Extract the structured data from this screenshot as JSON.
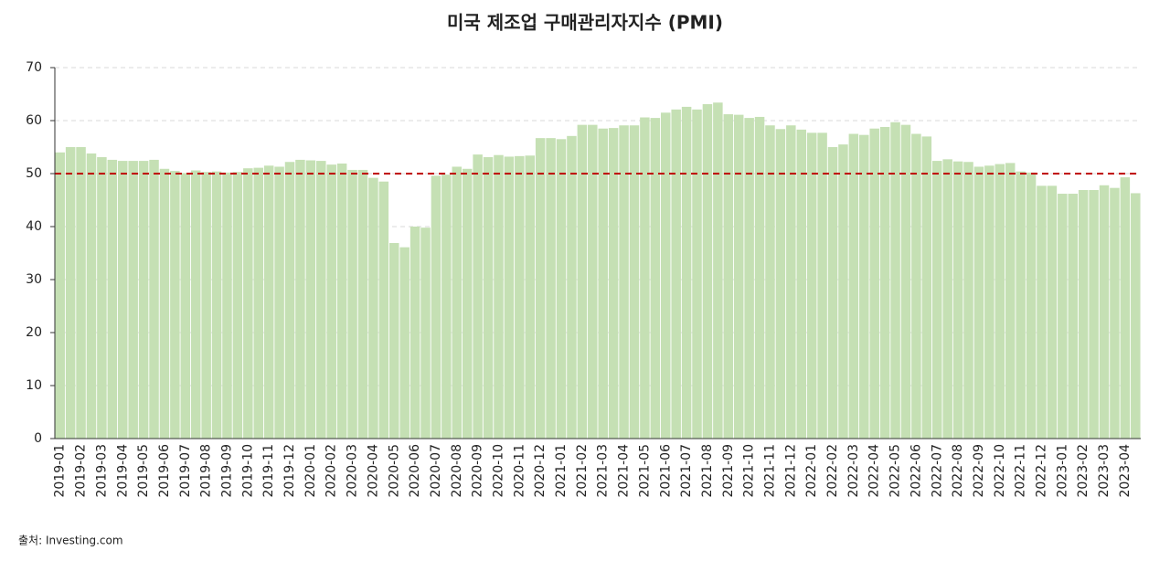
{
  "chart_data": {
    "type": "bar",
    "title": "미국 제조업 구매관리자지수 (PMI)",
    "source": "출처: Investing.com",
    "categories": [
      "2019-01",
      null,
      "2019-02",
      null,
      "2019-03",
      null,
      "2019-04",
      null,
      "2019-05",
      null,
      "2019-06",
      null,
      "2019-07",
      null,
      "2019-08",
      null,
      "2019-09",
      null,
      "2019-10",
      null,
      "2019-11",
      null,
      "2019-12",
      null,
      "2020-01",
      null,
      "2020-02",
      null,
      "2020-03",
      null,
      "2020-04",
      null,
      "2020-05",
      null,
      "2020-06",
      null,
      "2020-07",
      null,
      "2020-08",
      null,
      "2020-09",
      null,
      "2020-10",
      null,
      "2020-11",
      null,
      "2020-12",
      null,
      "2021-01",
      null,
      "2021-02",
      null,
      "2021-03",
      null,
      "2021-04",
      null,
      "2021-05",
      null,
      "2021-06",
      null,
      "2021-07",
      null,
      "2021-08",
      null,
      "2021-09",
      null,
      "2021-10",
      null,
      "2021-11",
      null,
      "2021-12",
      null,
      "2022-01",
      null,
      "2022-02",
      null,
      "2022-03",
      null,
      "2022-04",
      null,
      "2022-05",
      null,
      "2022-06",
      null,
      "2022-07",
      null,
      "2022-08",
      null,
      "2022-09",
      null,
      "2022-10",
      null,
      "2022-11",
      null,
      "2022-12",
      null,
      "2023-01",
      null,
      "2023-02",
      null,
      "2023-03",
      null,
      "2023-04",
      null
    ],
    "values": [
      54.0,
      55.0,
      55.0,
      53.8,
      53.1,
      52.6,
      52.4,
      52.4,
      52.4,
      52.6,
      50.9,
      50.5,
      50.1,
      50.6,
      50.3,
      50.4,
      50.2,
      50.3,
      51.0,
      51.1,
      51.5,
      51.3,
      52.2,
      52.6,
      52.5,
      52.4,
      51.7,
      51.9,
      50.7,
      50.7,
      49.2,
      48.5,
      36.9,
      36.1,
      40.0,
      39.8,
      49.6,
      49.8,
      51.3,
      50.9,
      53.6,
      53.1,
      53.5,
      53.2,
      53.3,
      53.4,
      56.7,
      56.7,
      56.5,
      57.1,
      59.2,
      59.2,
      58.5,
      58.6,
      59.1,
      59.1,
      60.6,
      60.5,
      61.5,
      62.1,
      62.6,
      62.1,
      63.1,
      63.4,
      61.2,
      61.1,
      60.5,
      60.7,
      59.1,
      58.4,
      59.1,
      58.3,
      57.7,
      57.7,
      55.0,
      55.5,
      57.5,
      57.3,
      58.5,
      58.8,
      59.7,
      59.2,
      57.5,
      57.0,
      52.4,
      52.7,
      52.3,
      52.2,
      51.3,
      51.5,
      51.8,
      52.0,
      50.4,
      50.2,
      47.7,
      47.7,
      46.2,
      46.2,
      46.9,
      46.9,
      47.8,
      47.3,
      49.3,
      46.3
    ],
    "color": "#c5e0b4",
    "ylim": [
      0,
      70
    ],
    "yticks": [
      0,
      10,
      20,
      30,
      40,
      50,
      60,
      70
    ],
    "grid": true,
    "reference_line": 50,
    "reference_color": "#c00000"
  }
}
